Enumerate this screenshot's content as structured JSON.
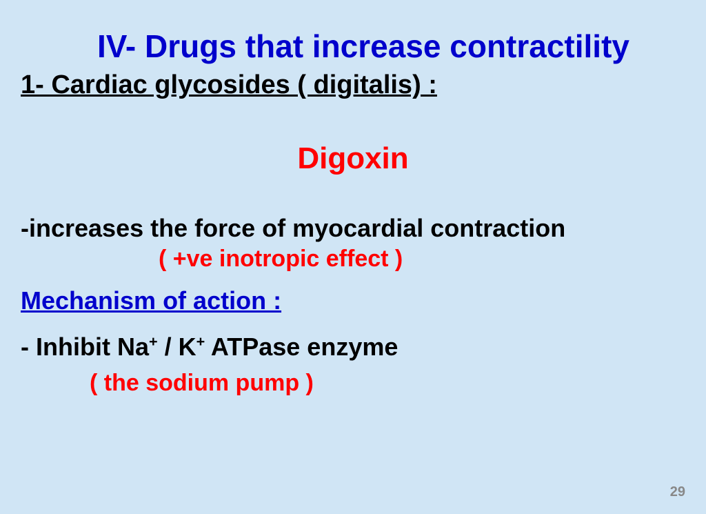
{
  "title": "IV-  Drugs that  increase contractility",
  "subheading": "1- Cardiac glycosides ( digitalis) :",
  "drug_name": "Digoxin",
  "effect_line": "-increases the force of myocardial contraction",
  "effect_note": "( +ve inotropic effect )",
  "mechanism_heading": "Mechanism of action :",
  "mechanism_prefix": "-  Inhibit Na",
  "mechanism_mid": " / K",
  "mechanism_suffix": " ATPase enzyme",
  "superscript": "+",
  "mechanism_note": "( the sodium pump )",
  "page_number": "29",
  "colors": {
    "background": "#d0e5f5",
    "title_blue": "#0000cc",
    "red": "#ff0000",
    "black": "#000000",
    "page_num": "#888888"
  },
  "fonts": {
    "title_size": 46,
    "subheading_size": 38,
    "drug_size": 44,
    "body_size": 36,
    "note_size": 34,
    "page_num_size": 20
  }
}
